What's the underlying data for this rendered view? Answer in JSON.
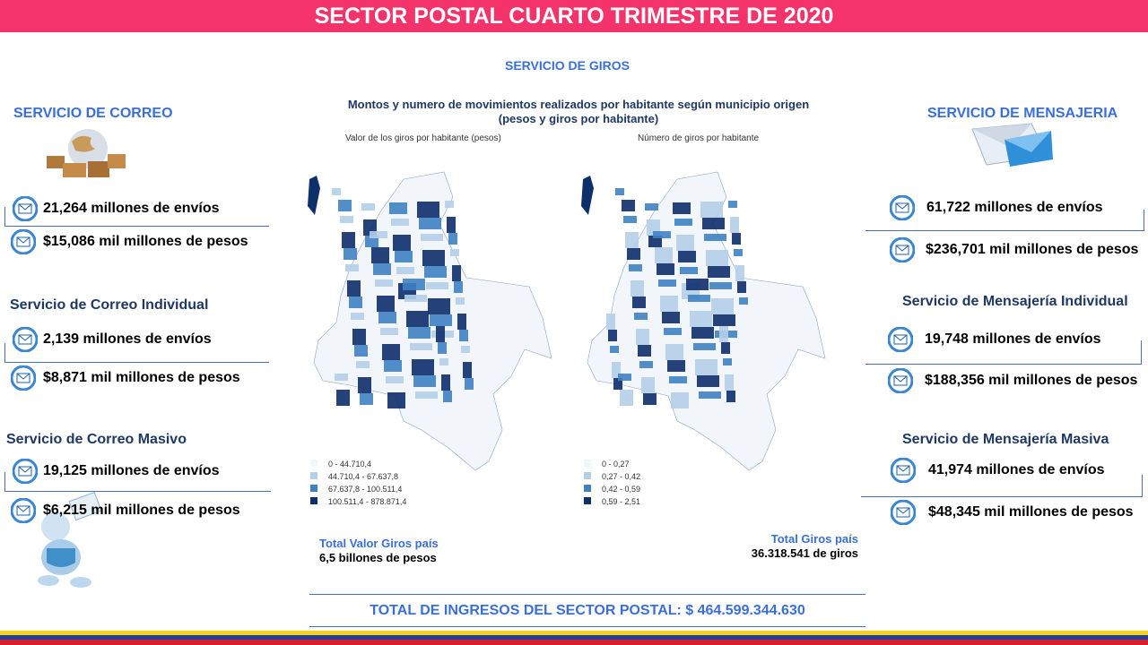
{
  "header": {
    "title": "SECTOR POSTAL CUARTO TRIMESTRE DE 2020"
  },
  "correo": {
    "title": "SERVICIO DE CORREO",
    "summary": [
      "21,264 millones  de envíos",
      "$15,086 mil  millones de pesos"
    ],
    "individual": {
      "title": "Servicio de Correo Individual",
      "items": [
        "2,139 millones  de envíos",
        "$8,871 mil millones de pesos"
      ]
    },
    "masivo": {
      "title": "Servicio de Correo Masivo",
      "items": [
        "19,125 millones  de envíos",
        "$6,215 mil millones de pesos"
      ]
    }
  },
  "mensajeria": {
    "title": "SERVICIO DE MENSAJERIA",
    "summary": [
      "61,722 millones  de envíos",
      "$236,701 mil millones de pesos"
    ],
    "individual": {
      "title": "Servicio de Mensajería Individual",
      "items": [
        "19,748 millones  de envíos",
        "$188,356 mil millones de pesos"
      ]
    },
    "masivo": {
      "title": "Servicio de Mensajería Masiva",
      "items": [
        "41,974 millones  de envíos",
        "$48,345 mil millones de pesos"
      ]
    }
  },
  "giros": {
    "title": "SERVICIO DE GIROS",
    "map_title": [
      "Montos y numero de movimientos realizados por habitante según municipio origen",
      "(pesos y giros por habitante)"
    ],
    "maps": [
      {
        "subtitle": "Valor de los giros por habitante (pesos)",
        "legend": [
          "0 - 44.710,4",
          "44.710,4 - 67.637,8",
          "67.637,8 - 100.511,4",
          "100.511,4 - 878.871,4"
        ],
        "total_label": "Total Valor Giros país",
        "total_value": "6,5 billones de pesos"
      },
      {
        "subtitle": "Número de giros por habitante",
        "legend": [
          "0 - 0,27",
          "0,27 - 0,42",
          "0,42 - 0,59",
          "0,59 - 2,51"
        ],
        "total_label": "Total Giros país",
        "total_value": "36.318.541 de giros"
      }
    ]
  },
  "footer": {
    "total": "TOTAL DE INGRESOS DEL SECTOR POSTAL: $ 464.599.344.630"
  }
}
